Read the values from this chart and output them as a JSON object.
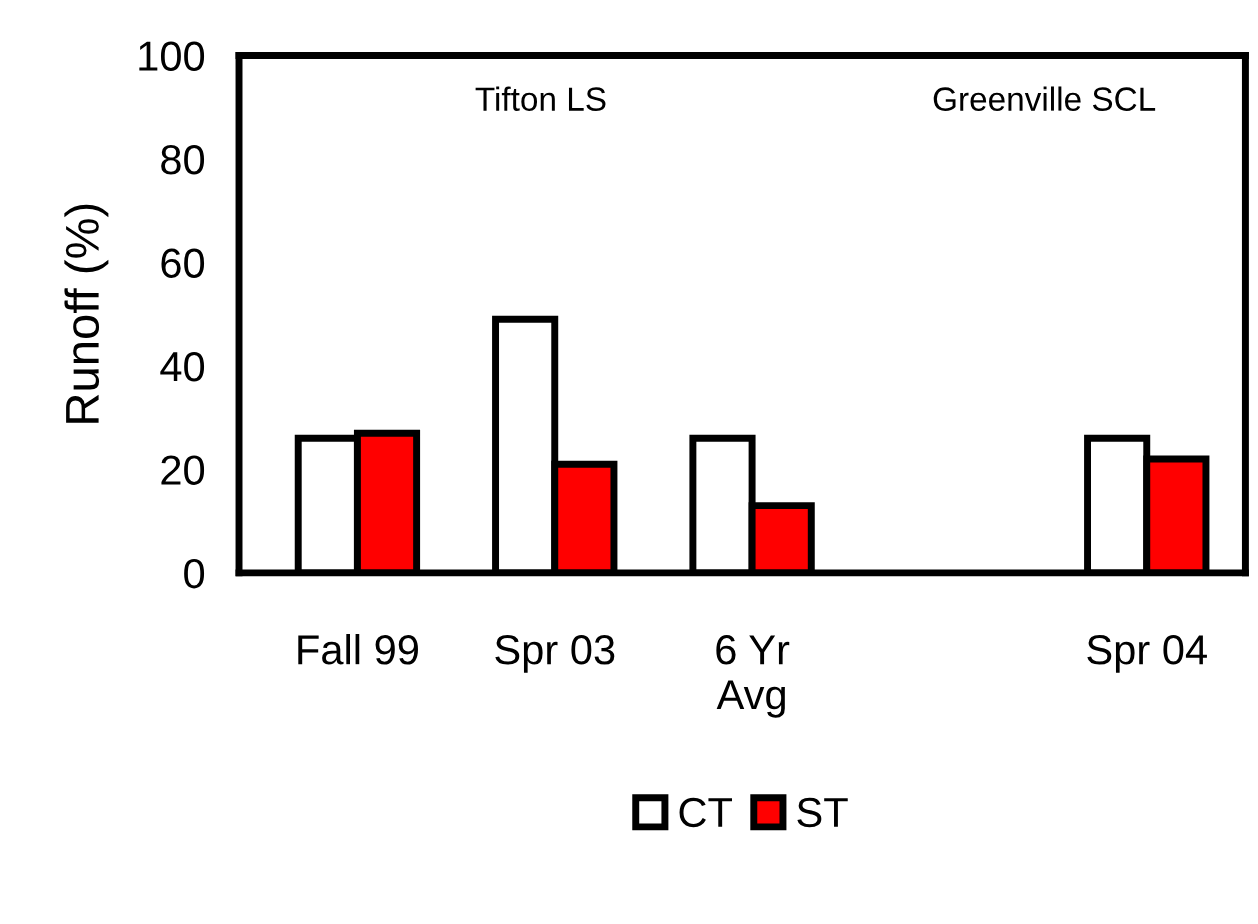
{
  "chart_data": {
    "type": "bar",
    "ylabel": "Runoff (%)",
    "categories": [
      "Fall 99",
      "Spr 03",
      "6 Yr\nAvg",
      null,
      "Spr 04"
    ],
    "series": [
      {
        "name": "CT",
        "color": "#ffffff",
        "values": [
          26,
          49,
          26,
          null,
          26
        ]
      },
      {
        "name": "ST",
        "color": "#ff0000",
        "values": [
          27,
          21,
          13,
          null,
          22
        ]
      }
    ],
    "ylim": [
      0,
      100
    ],
    "yticks": [
      0,
      20,
      40,
      60,
      80,
      100
    ],
    "grid": false,
    "legend": "bottom",
    "annotations": [
      "Tifton LS",
      "Greenville SCL"
    ]
  }
}
